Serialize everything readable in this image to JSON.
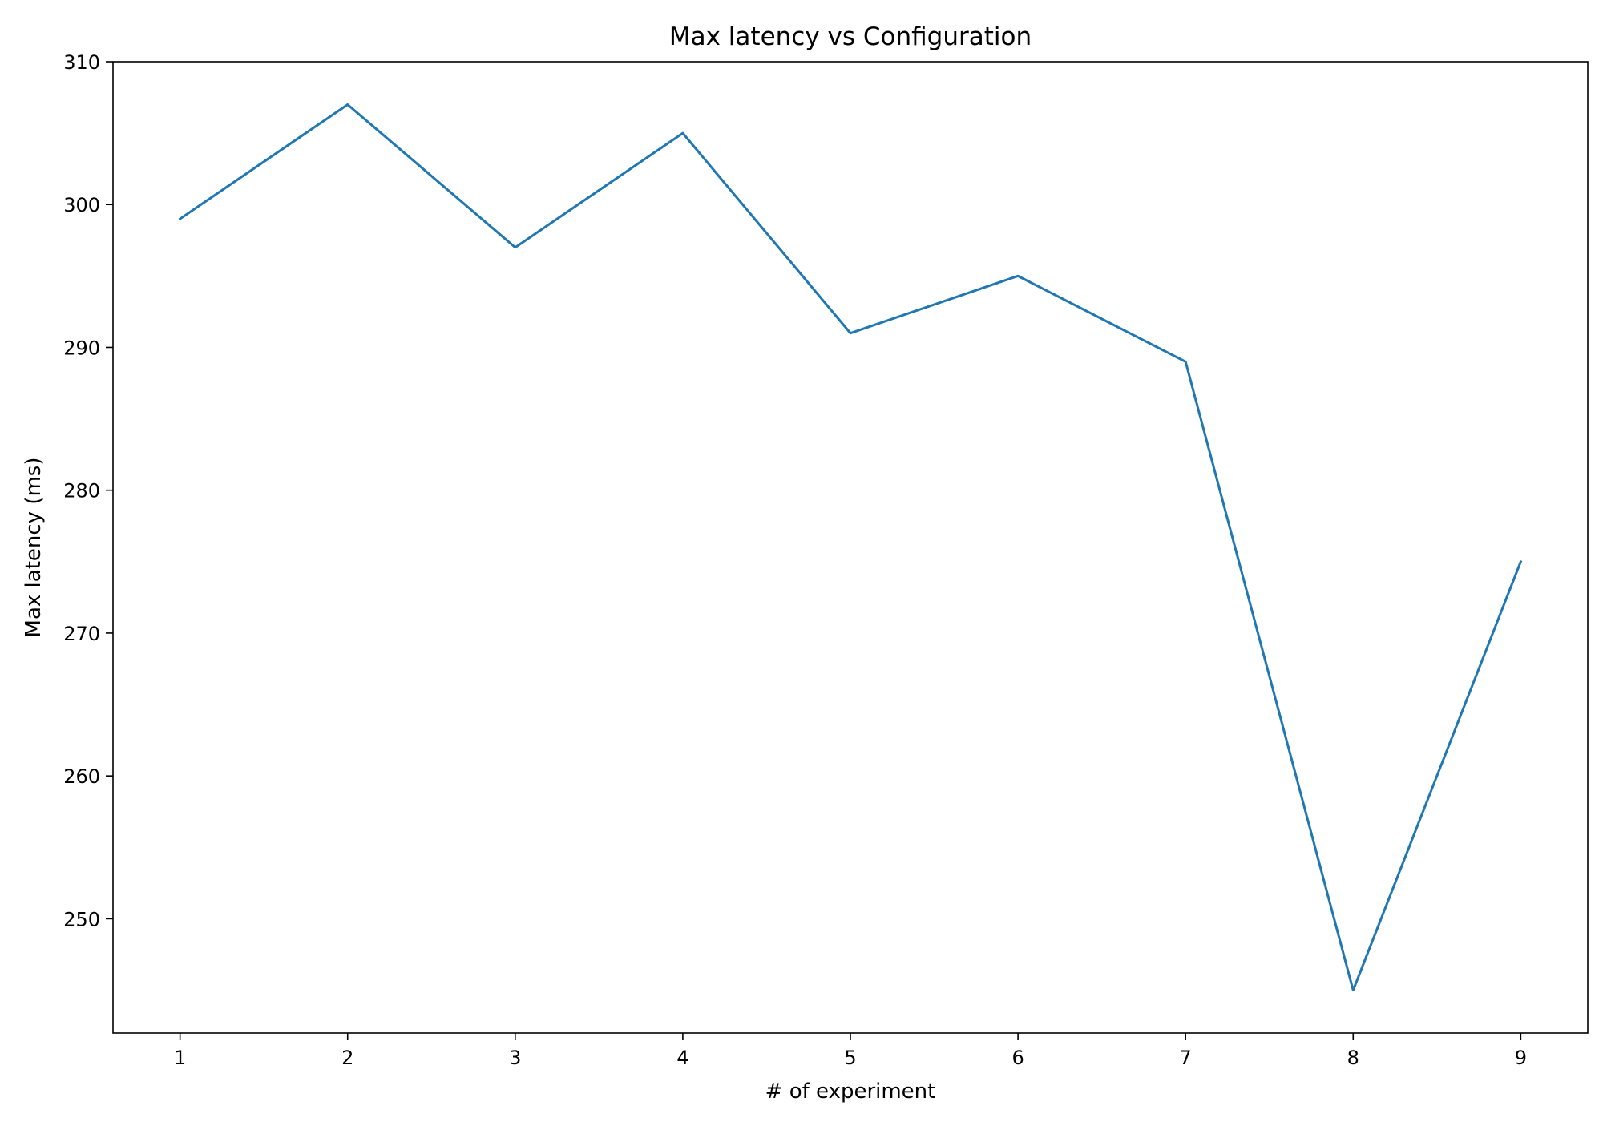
{
  "chart_data": {
    "type": "line",
    "title": "Max latency vs Configuration",
    "xlabel": "# of experiment",
    "ylabel": "Max latency (ms)",
    "x": [
      1,
      2,
      3,
      4,
      5,
      6,
      7,
      8,
      9
    ],
    "series": [
      {
        "values": [
          299,
          307,
          297,
          305,
          291,
          295,
          289,
          245,
          275
        ],
        "color": "#1f77b4"
      }
    ],
    "xlim": [
      0.6,
      9.4
    ],
    "ylim": [
      242,
      310
    ],
    "xticks": [
      1,
      2,
      3,
      4,
      5,
      6,
      7,
      8,
      9
    ],
    "yticks": [
      250,
      260,
      270,
      280,
      290,
      300,
      310
    ],
    "grid": false,
    "legend": false
  }
}
